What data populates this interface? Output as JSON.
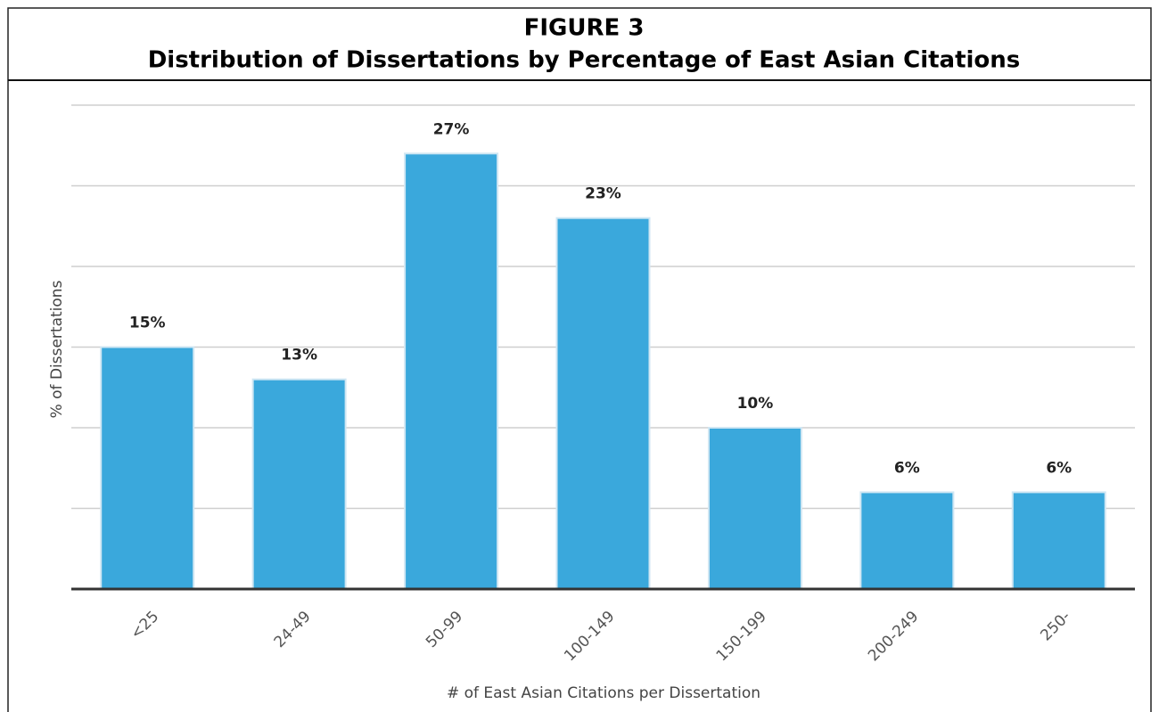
{
  "chart_data": {
    "type": "bar",
    "title": "FIGURE 3",
    "subtitle": "Distribution of Dissertations by Percentage of East Asian Citations",
    "x_label": "# of East Asian Citations per Dissertation",
    "y_label": "% of Dissertations",
    "categories": [
      "<25",
      "24-49",
      "50-99",
      "100-149",
      "150-199",
      "200-249",
      "250-"
    ],
    "values": [
      15,
      13,
      27,
      23,
      10,
      6,
      6
    ],
    "value_labels": [
      "15%",
      "13%",
      "27%",
      "23%",
      "10%",
      "6%",
      "6%"
    ],
    "color": "#3aa8dc",
    "ylim": [
      0,
      30
    ],
    "yticks": [
      0,
      5,
      10,
      15,
      20,
      25,
      30
    ],
    "grid": true
  }
}
